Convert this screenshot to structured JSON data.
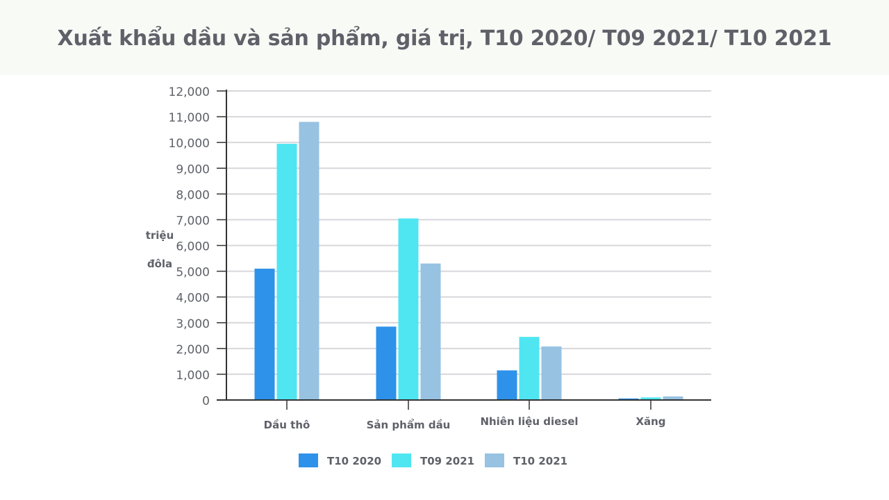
{
  "title": "Xuất khẩu dầu và sản phẩm, giá trị, T10 2020/ T09 2021/ T10 2021",
  "colors": {
    "series": [
      "#2e92ea",
      "#4fe6f2",
      "#97c2e2"
    ],
    "grid": "#d7d7dc",
    "axis": "#333333",
    "text": "#5f6169"
  },
  "chart_data": {
    "type": "bar",
    "title": "Xuất khẩu dầu và sản phẩm, giá trị, T10 2020/ T09 2021/ T10 2021",
    "ylabel": [
      "triệu",
      "đôla"
    ],
    "xlabel": "",
    "ylim": [
      0,
      12000
    ],
    "ytick_step": 1000,
    "yticks": [
      "0",
      "1,000",
      "2,000",
      "3,000",
      "4,000",
      "5,000",
      "6,000",
      "7,000",
      "8,000",
      "9,000",
      "10,000",
      "11,000",
      "12,000"
    ],
    "categories": [
      "Dầu thô",
      "Sản phẩm dầu",
      "Nhiên liệu diesel",
      "Xăng"
    ],
    "series": [
      {
        "name": "T10 2020",
        "values": [
          5100,
          2850,
          1150,
          60
        ]
      },
      {
        "name": "T09 2021",
        "values": [
          9950,
          7050,
          2450,
          100
        ]
      },
      {
        "name": "T10 2021",
        "values": [
          10800,
          5300,
          2080,
          140
        ]
      }
    ],
    "grid": true,
    "legend_position": "bottom"
  }
}
